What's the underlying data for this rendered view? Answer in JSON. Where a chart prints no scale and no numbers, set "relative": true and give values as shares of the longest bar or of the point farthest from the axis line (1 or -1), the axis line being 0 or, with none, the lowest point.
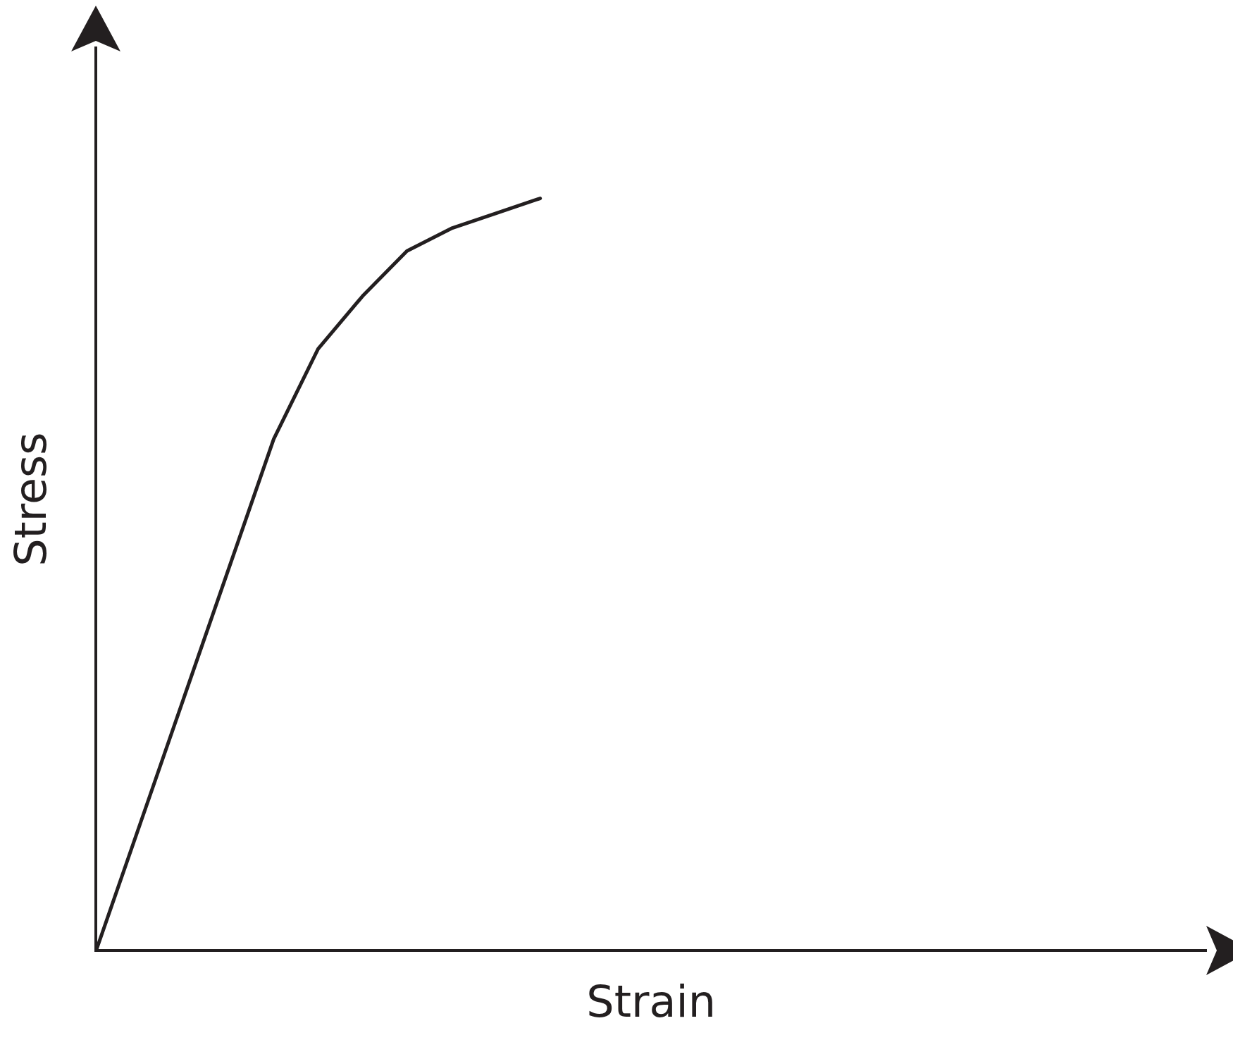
{
  "chart_data": {
    "type": "line",
    "relative": true,
    "xlabel": "Strain",
    "ylabel": "Stress",
    "categories": [
      null,
      null,
      null,
      null,
      null,
      null,
      null,
      null,
      null,
      null,
      null,
      null,
      null,
      null,
      null,
      null,
      null,
      null,
      null,
      null,
      null,
      null,
      null,
      null,
      null,
      null
    ],
    "series": [
      {
        "color": "#231f20",
        "values": [
          0,
          0.17,
          0.34,
          0.51,
          0.68,
          0.8,
          0.87,
          0.93,
          0.96,
          0.98,
          1.0,
          null,
          null,
          null,
          null,
          null,
          null,
          null,
          null,
          null,
          null,
          null,
          null,
          null,
          null,
          null
        ]
      }
    ],
    "grid": false,
    "legend": false,
    "marker": "none",
    "line_style": "solid"
  }
}
